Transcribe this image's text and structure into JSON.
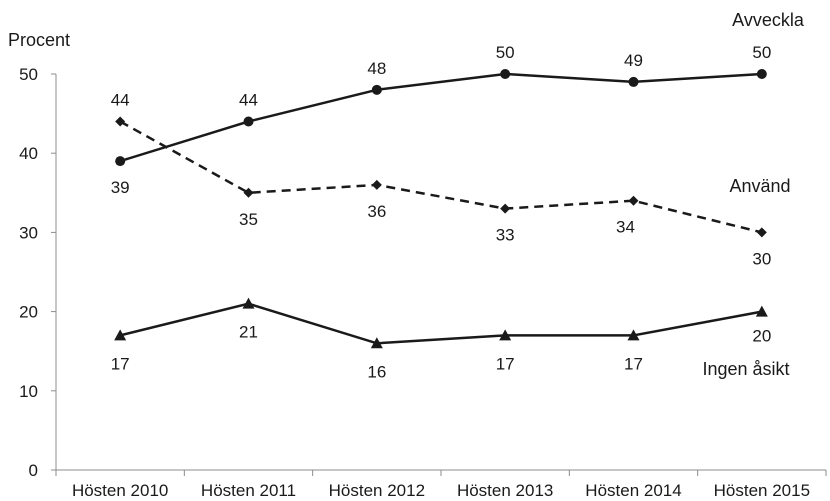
{
  "chart_data": {
    "type": "line",
    "title": "",
    "ylabel": "Procent",
    "xlabel": "",
    "ylim": [
      0,
      50
    ],
    "yticks": [
      0,
      10,
      20,
      30,
      40,
      50
    ],
    "categories": [
      "Hösten 2010",
      "Hösten 2011",
      "Hösten 2012",
      "Hösten 2013",
      "Hösten 2014",
      "Hösten 2015"
    ],
    "grid": false,
    "series": [
      {
        "name": "Avveckla",
        "values": [
          39,
          44,
          48,
          50,
          49,
          50
        ],
        "marker": "circle",
        "dash": "solid",
        "color": "#1a1a1a"
      },
      {
        "name": "Använd",
        "values": [
          44,
          35,
          36,
          33,
          34,
          30
        ],
        "marker": "diamond",
        "dash": "dashed",
        "color": "#1a1a1a"
      },
      {
        "name": "Ingen åsikt",
        "values": [
          17,
          21,
          16,
          17,
          17,
          20
        ],
        "marker": "triangle",
        "dash": "solid",
        "color": "#1a1a1a"
      }
    ]
  }
}
